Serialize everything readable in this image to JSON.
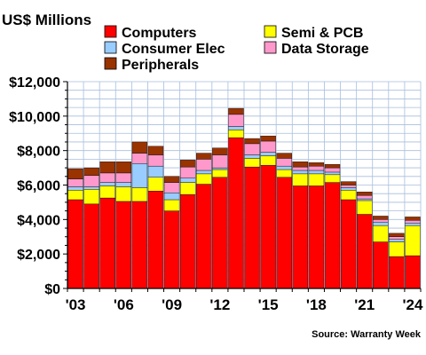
{
  "chart_data": {
    "type": "bar",
    "stacked": true,
    "title": "US$ Millions",
    "source": "Source: Warranty Week",
    "xlabel": "",
    "ylabel": "",
    "ylim": [
      0,
      12000
    ],
    "grid": true,
    "legend_position": "top-right",
    "categories": [
      "2003",
      "2004",
      "2005",
      "2006",
      "2007",
      "2008",
      "2009",
      "2010",
      "2011",
      "2012",
      "2013",
      "2014",
      "2015",
      "2016",
      "2017",
      "2018",
      "2019",
      "2020",
      "2021",
      "2022",
      "2023",
      "2024"
    ],
    "x_tick_labels": [
      "'03",
      "'06",
      "'09",
      "'12",
      "'15",
      "'18",
      "'21",
      "'24"
    ],
    "y_tick_labels": [
      "$0",
      "$2,000",
      "$4,000",
      "$6,000",
      "$8,000",
      "$10,000",
      "$12,000"
    ],
    "series": [
      {
        "name": "Computers",
        "color": "#ff0000",
        "values": [
          5150,
          4900,
          5250,
          5050,
          5050,
          5650,
          4500,
          5450,
          6050,
          6450,
          8750,
          7050,
          7150,
          6450,
          5950,
          5950,
          6150,
          5150,
          4300,
          2700,
          1850,
          1900
        ]
      },
      {
        "name": "Semi & PCB",
        "color": "#ffff00",
        "values": [
          550,
          850,
          700,
          850,
          800,
          800,
          650,
          700,
          600,
          450,
          450,
          500,
          550,
          450,
          700,
          700,
          450,
          550,
          800,
          950,
          850,
          1750
        ]
      },
      {
        "name": "Consumer Elec",
        "color": "#99ccff",
        "values": [
          200,
          150,
          200,
          250,
          1400,
          650,
          400,
          250,
          200,
          100,
          200,
          200,
          200,
          200,
          200,
          200,
          150,
          150,
          100,
          200,
          150,
          150
        ]
      },
      {
        "name": "Data Storage",
        "color": "#ff99cc",
        "values": [
          450,
          650,
          550,
          550,
          600,
          650,
          600,
          650,
          650,
          750,
          700,
          650,
          650,
          450,
          200,
          250,
          250,
          150,
          200,
          150,
          150,
          150
        ]
      },
      {
        "name": "Peripherals",
        "color": "#993300",
        "values": [
          600,
          450,
          650,
          650,
          650,
          500,
          350,
          400,
          350,
          400,
          350,
          300,
          300,
          300,
          300,
          200,
          200,
          200,
          200,
          200,
          200,
          200
        ]
      }
    ]
  }
}
